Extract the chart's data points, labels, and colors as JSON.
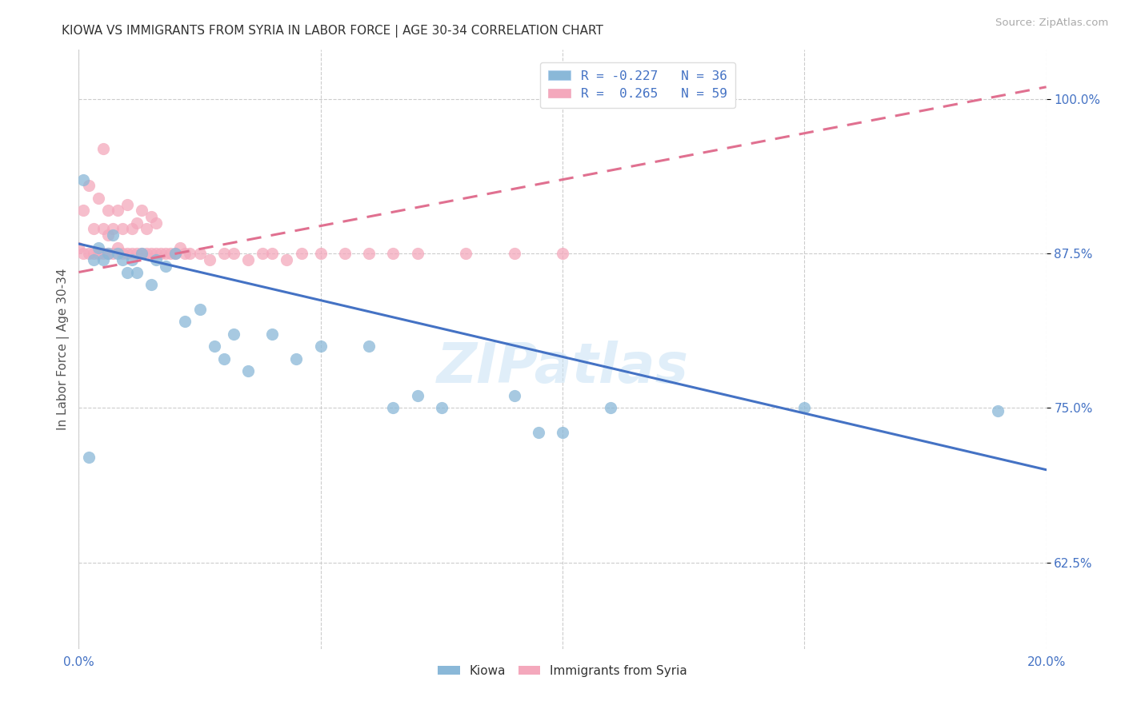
{
  "title": "KIOWA VS IMMIGRANTS FROM SYRIA IN LABOR FORCE | AGE 30-34 CORRELATION CHART",
  "source": "Source: ZipAtlas.com",
  "ylabel": "In Labor Force | Age 30-34",
  "xlim": [
    0.0,
    0.2
  ],
  "ylim": [
    0.555,
    1.04
  ],
  "yticks": [
    0.625,
    0.75,
    0.875,
    1.0
  ],
  "xticks": [
    0.0,
    0.05,
    0.1,
    0.15,
    0.2
  ],
  "kiowa_R": -0.227,
  "kiowa_N": 36,
  "syria_R": 0.265,
  "syria_N": 59,
  "kiowa_color": "#8ab8d8",
  "syria_color": "#f4a8bc",
  "kiowa_line_color": "#4472c4",
  "syria_line_color": "#e07090",
  "watermark": "ZIPatlas",
  "background_color": "#ffffff",
  "kiowa_x": [
    0.001,
    0.003,
    0.004,
    0.005,
    0.006,
    0.007,
    0.008,
    0.009,
    0.01,
    0.011,
    0.012,
    0.013,
    0.015,
    0.016,
    0.018,
    0.02,
    0.022,
    0.025,
    0.028,
    0.03,
    0.032,
    0.035,
    0.04,
    0.045,
    0.05,
    0.06,
    0.065,
    0.07,
    0.075,
    0.09,
    0.095,
    0.1,
    0.11,
    0.15,
    0.19,
    0.002
  ],
  "kiowa_y": [
    0.935,
    0.87,
    0.88,
    0.87,
    0.875,
    0.89,
    0.875,
    0.87,
    0.86,
    0.87,
    0.86,
    0.875,
    0.85,
    0.87,
    0.865,
    0.875,
    0.82,
    0.83,
    0.8,
    0.79,
    0.81,
    0.78,
    0.81,
    0.79,
    0.8,
    0.8,
    0.75,
    0.76,
    0.75,
    0.76,
    0.73,
    0.73,
    0.75,
    0.75,
    0.748,
    0.71
  ],
  "syria_x": [
    0.0,
    0.001,
    0.001,
    0.002,
    0.002,
    0.003,
    0.003,
    0.004,
    0.004,
    0.005,
    0.005,
    0.005,
    0.006,
    0.006,
    0.006,
    0.007,
    0.007,
    0.008,
    0.008,
    0.009,
    0.009,
    0.01,
    0.01,
    0.011,
    0.011,
    0.012,
    0.012,
    0.013,
    0.013,
    0.014,
    0.014,
    0.015,
    0.015,
    0.016,
    0.016,
    0.017,
    0.018,
    0.019,
    0.02,
    0.021,
    0.022,
    0.023,
    0.025,
    0.027,
    0.03,
    0.032,
    0.035,
    0.038,
    0.04,
    0.043,
    0.046,
    0.05,
    0.055,
    0.06,
    0.065,
    0.07,
    0.08,
    0.09,
    0.1
  ],
  "syria_y": [
    0.88,
    0.875,
    0.91,
    0.875,
    0.93,
    0.875,
    0.895,
    0.875,
    0.92,
    0.875,
    0.895,
    0.96,
    0.875,
    0.89,
    0.91,
    0.875,
    0.895,
    0.88,
    0.91,
    0.875,
    0.895,
    0.875,
    0.915,
    0.875,
    0.895,
    0.875,
    0.9,
    0.875,
    0.91,
    0.875,
    0.895,
    0.875,
    0.905,
    0.875,
    0.9,
    0.875,
    0.875,
    0.875,
    0.875,
    0.88,
    0.875,
    0.875,
    0.875,
    0.87,
    0.875,
    0.875,
    0.87,
    0.875,
    0.875,
    0.87,
    0.875,
    0.875,
    0.875,
    0.875,
    0.875,
    0.875,
    0.875,
    0.875,
    0.875
  ],
  "kiowa_line_x": [
    0.0,
    0.2
  ],
  "kiowa_line_y": [
    0.883,
    0.7
  ],
  "syria_line_x": [
    0.0,
    0.2
  ],
  "syria_line_y": [
    0.86,
    1.01
  ]
}
